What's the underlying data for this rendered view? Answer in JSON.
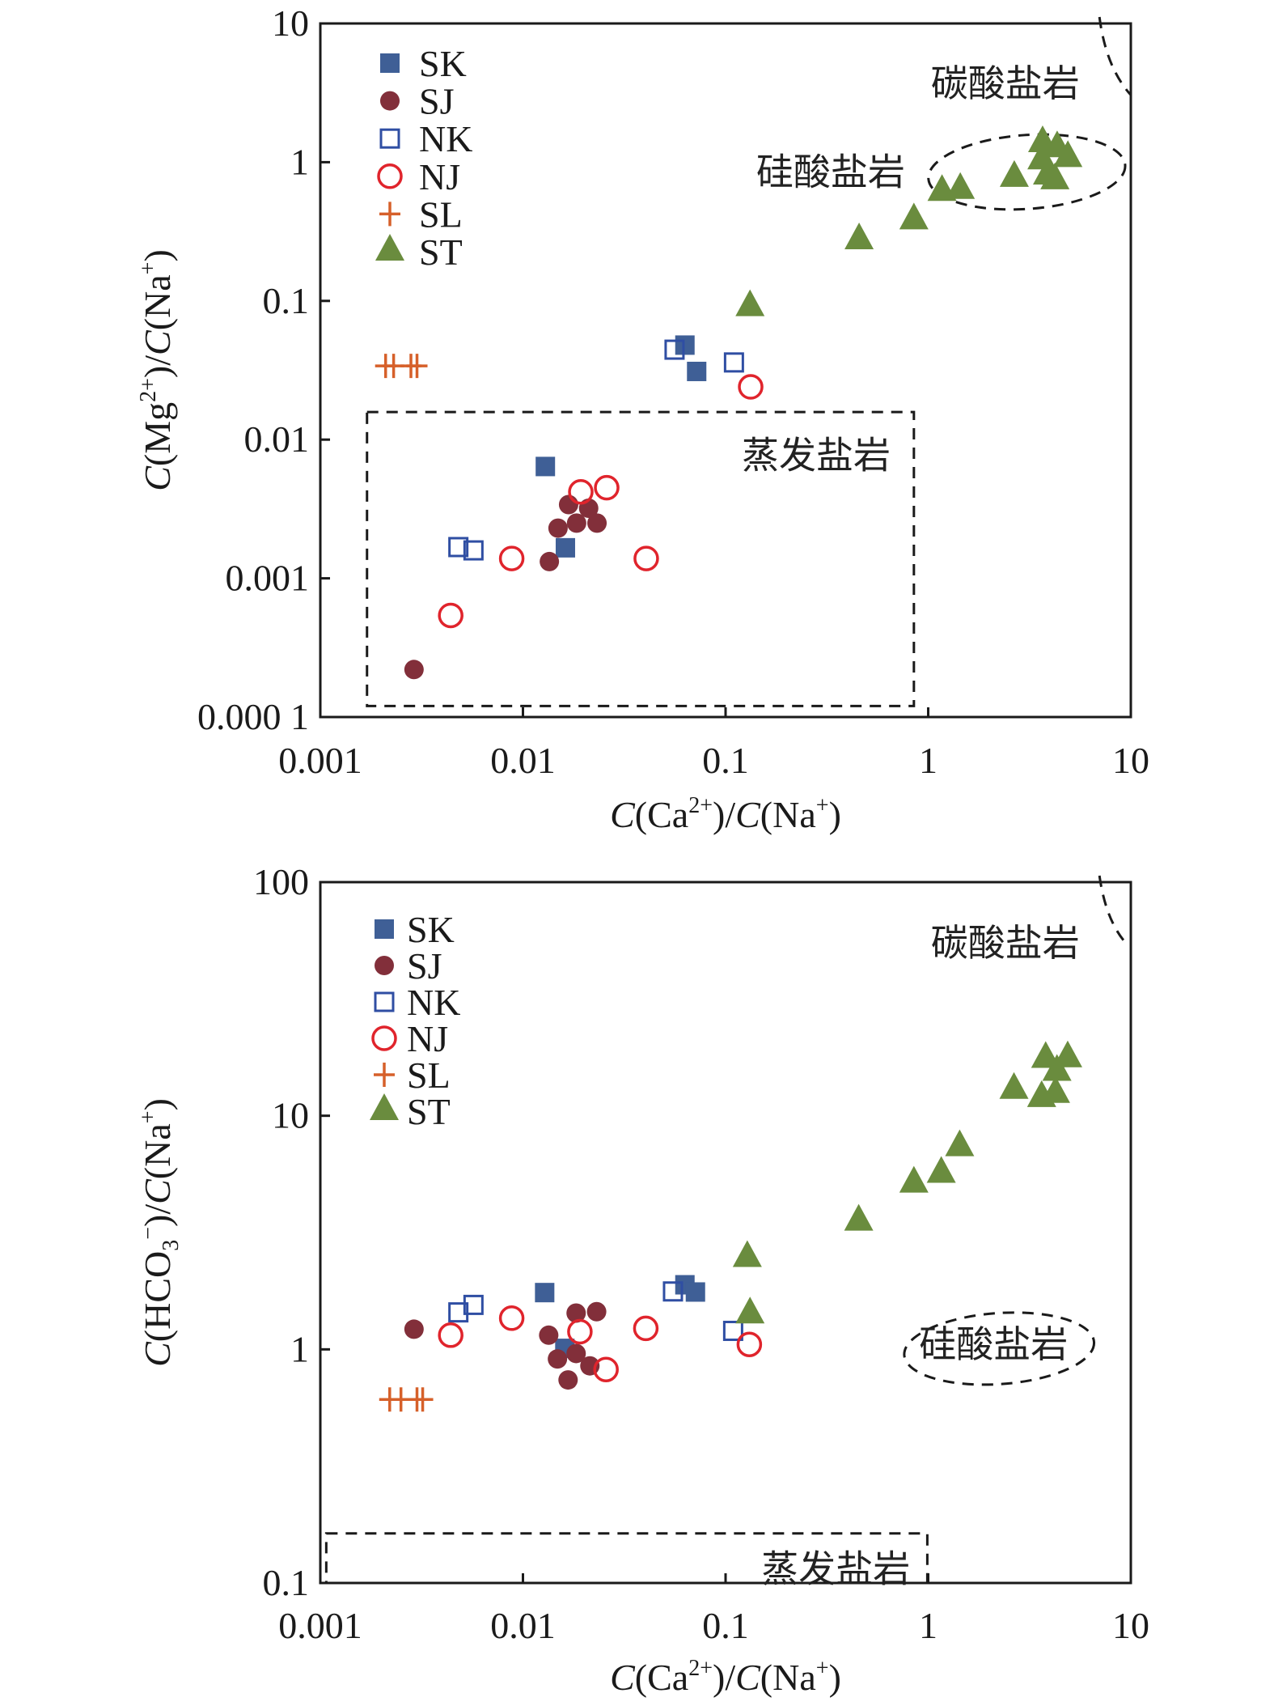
{
  "chart_data": [
    {
      "type": "scatter",
      "id": "mg",
      "title": "",
      "xlabel": "C(Ca2+)/C(Na+)",
      "xlabel_parts": {
        "c1": "C",
        "open1": "(Ca",
        "sup1": "2+",
        "close1": ")/",
        "c2": "C",
        "open2": "(Na",
        "sup2": "+",
        "close2": ")"
      },
      "ylabel": "C(Mg2+)/C(Na+)",
      "ylabel_parts": {
        "c1": "C",
        "open1": "(Mg",
        "sup1": "2+",
        "close1": ")/",
        "c2": "C",
        "open2": "(Na",
        "sup2": "+",
        "close2": ")"
      },
      "xscale": "log",
      "yscale": "log",
      "xlim": [
        0.001,
        10
      ],
      "ylim": [
        0.0001,
        10
      ],
      "xticks": [
        {
          "v": 0.001,
          "label": "0.001"
        },
        {
          "v": 0.01,
          "label": "0.01"
        },
        {
          "v": 0.1,
          "label": "0.1"
        },
        {
          "v": 1,
          "label": "1"
        },
        {
          "v": 10,
          "label": "10"
        }
      ],
      "yticks": [
        {
          "v": 10,
          "label": "10"
        },
        {
          "v": 1,
          "label": "1"
        },
        {
          "v": 0.1,
          "label": "0.1"
        },
        {
          "v": 0.01,
          "label": "0.01"
        },
        {
          "v": 0.001,
          "label": "0.001"
        },
        {
          "v": 0.0001,
          "label": "0.000 1"
        }
      ],
      "grid": false,
      "legend_position": "top-left",
      "series": [
        {
          "name": "SK",
          "marker": "square-filled",
          "color": "#3f5f96",
          "points": [
            [
              0.0129,
              0.0064
            ],
            [
              0.0162,
              0.00166
            ],
            [
              0.063,
              0.048
            ],
            [
              0.072,
              0.031
            ]
          ]
        },
        {
          "name": "SJ",
          "marker": "circle-filled",
          "color": "#822f3a",
          "points": [
            [
              0.0029,
              0.00022
            ],
            [
              0.0135,
              0.00132
            ],
            [
              0.0149,
              0.0023
            ],
            [
              0.0168,
              0.0034
            ],
            [
              0.0184,
              0.0025
            ],
            [
              0.0211,
              0.0032
            ],
            [
              0.0232,
              0.0025
            ]
          ]
        },
        {
          "name": "NK",
          "marker": "square-open",
          "color": "#2f4ea3",
          "points": [
            [
              0.0048,
              0.00168
            ],
            [
              0.0057,
              0.00159
            ],
            [
              0.056,
              0.0445
            ],
            [
              0.11,
              0.036
            ]
          ]
        },
        {
          "name": "NJ",
          "marker": "circle-open",
          "color": "#e0242c",
          "points": [
            [
              0.0044,
              0.00054
            ],
            [
              0.0088,
              0.00139
            ],
            [
              0.0193,
              0.0042
            ],
            [
              0.0259,
              0.0045
            ],
            [
              0.0406,
              0.00139
            ],
            [
              0.133,
              0.024
            ]
          ]
        },
        {
          "name": "SL",
          "marker": "plus",
          "color": "#d6602a",
          "points": [
            [
              0.0021,
              0.034
            ],
            [
              0.0023,
              0.034
            ],
            [
              0.0028,
              0.034
            ],
            [
              0.003,
              0.034
            ]
          ]
        },
        {
          "name": "ST",
          "marker": "triangle-filled",
          "color": "#6a8c3e",
          "points": [
            [
              0.132,
              0.09
            ],
            [
              0.456,
              0.273
            ],
            [
              0.85,
              0.38
            ],
            [
              1.17,
              0.61
            ],
            [
              1.44,
              0.63
            ],
            [
              2.66,
              0.77
            ],
            [
              3.64,
              1.03
            ],
            [
              3.67,
              1.37
            ],
            [
              3.88,
              0.8
            ],
            [
              4.22,
              0.74
            ],
            [
              4.33,
              1.26
            ],
            [
              4.89,
              1.07
            ]
          ]
        }
      ],
      "annotations": [
        {
          "id": "carbonate",
          "text": "碳酸盐岩",
          "x": 2.4,
          "y": 3.7
        },
        {
          "id": "silicate",
          "text": "硅酸盐岩",
          "x": 0.33,
          "y": 0.85
        },
        {
          "id": "evaporite",
          "text": "蒸发盐岩",
          "x": 0.28,
          "y": 0.0077
        }
      ],
      "regions": [
        {
          "id": "evaporite-box",
          "shape": "rect",
          "x0": 0.0017,
          "x1": 0.85,
          "y0": 0.00012,
          "y1": 0.0158
        },
        {
          "id": "silicate-ellipse",
          "shape": "ellipse",
          "cx": 2.15,
          "cy": 0.86,
          "x_span": [
            1.0,
            9.4
          ],
          "y_span": [
            0.46,
            1.57
          ]
        },
        {
          "id": "carbonate-curve",
          "shape": "curve",
          "from": [
            7.0,
            10
          ],
          "to": [
            10,
            3.05
          ]
        }
      ]
    },
    {
      "type": "scatter",
      "id": "hco3",
      "title": "",
      "xlabel": "C(Ca2+)/C(Na+)",
      "xlabel_parts": {
        "c1": "C",
        "open1": "(Ca",
        "sup1": "2+",
        "close1": ")/",
        "c2": "C",
        "open2": "(Na",
        "sup2": "+",
        "close2": ")"
      },
      "ylabel": "C(HCO3-)/C(Na+)",
      "ylabel_parts": {
        "c1": "C",
        "open1": "(HCO",
        "sub1": "3",
        "sup1": "−",
        "close1": ")/",
        "c2": "C",
        "open2": "(Na",
        "sup2": "+",
        "close2": ")"
      },
      "xscale": "log",
      "yscale": "log",
      "xlim": [
        0.001,
        10
      ],
      "ylim": [
        0.1,
        100
      ],
      "xticks": [
        {
          "v": 0.001,
          "label": "0.001"
        },
        {
          "v": 0.01,
          "label": "0.01"
        },
        {
          "v": 0.1,
          "label": "0.1"
        },
        {
          "v": 1,
          "label": "1"
        },
        {
          "v": 10,
          "label": "10"
        }
      ],
      "yticks": [
        {
          "v": 100,
          "label": "100"
        },
        {
          "v": 10,
          "label": "10"
        },
        {
          "v": 1,
          "label": "1"
        },
        {
          "v": 0.1,
          "label": "0.1"
        }
      ],
      "grid": false,
      "legend_position": "top-left",
      "series": [
        {
          "name": "SK",
          "marker": "square-filled",
          "color": "#3f5f96",
          "points": [
            [
              0.0128,
              1.75
            ],
            [
              0.0161,
              1.01
            ],
            [
              0.063,
              1.89
            ],
            [
              0.071,
              1.76
            ]
          ]
        },
        {
          "name": "SJ",
          "marker": "circle-filled",
          "color": "#822f3a",
          "points": [
            [
              0.0029,
              1.22
            ],
            [
              0.0134,
              1.15
            ],
            [
              0.0148,
              0.91
            ],
            [
              0.0167,
              0.74
            ],
            [
              0.0183,
              0.96
            ],
            [
              0.0183,
              1.43
            ],
            [
              0.0214,
              0.85
            ],
            [
              0.0231,
              1.45
            ]
          ]
        },
        {
          "name": "NK",
          "marker": "square-open",
          "color": "#2f4ea3",
          "points": [
            [
              0.0048,
              1.44
            ],
            [
              0.0057,
              1.55
            ],
            [
              0.055,
              1.77
            ],
            [
              0.109,
              1.2
            ]
          ]
        },
        {
          "name": "NJ",
          "marker": "circle-open",
          "color": "#e0242c",
          "points": [
            [
              0.0044,
              1.15
            ],
            [
              0.0088,
              1.36
            ],
            [
              0.0191,
              1.19
            ],
            [
              0.0257,
              0.82
            ],
            [
              0.0404,
              1.23
            ],
            [
              0.131,
              1.05
            ]
          ]
        },
        {
          "name": "SL",
          "marker": "plus",
          "color": "#d6602a",
          "points": [
            [
              0.0022,
              0.61
            ],
            [
              0.0025,
              0.61
            ],
            [
              0.003,
              0.61
            ],
            [
              0.0032,
              0.61
            ]
          ]
        },
        {
          "name": "ST",
          "marker": "triangle-filled",
          "color": "#6a8c3e",
          "points": [
            [
              0.128,
              2.46
            ],
            [
              0.132,
              1.41
            ],
            [
              0.454,
              3.52
            ],
            [
              0.85,
              5.12
            ],
            [
              1.16,
              5.64
            ],
            [
              1.43,
              7.33
            ],
            [
              2.65,
              12.9
            ],
            [
              3.63,
              11.9
            ],
            [
              3.8,
              17.5
            ],
            [
              4.25,
              12.4
            ],
            [
              4.32,
              15.4
            ],
            [
              4.88,
              17.6
            ]
          ]
        }
      ],
      "annotations": [
        {
          "id": "carbonate",
          "text": "碳酸盐岩",
          "x": 2.4,
          "y": 55
        },
        {
          "id": "silicate",
          "text": "硅酸盐岩",
          "x": 2.1,
          "y": 1.05
        },
        {
          "id": "evaporite",
          "text": "蒸发盐岩",
          "x": 0.35,
          "y": 0.115
        }
      ],
      "regions": [
        {
          "id": "evaporite-box",
          "shape": "rect",
          "x0": 0.00107,
          "x1": 0.99,
          "y0": 0.1,
          "y1": 0.163
        },
        {
          "id": "silicate-ellipse",
          "shape": "ellipse",
          "cx": 2.15,
          "cy": 1.02,
          "x_span": [
            0.76,
            6.6
          ],
          "y_span": [
            0.71,
            1.43
          ]
        },
        {
          "id": "carbonate-curve",
          "shape": "curve",
          "from": [
            7.0,
            100
          ],
          "to": [
            9.6,
            54
          ]
        }
      ]
    }
  ]
}
